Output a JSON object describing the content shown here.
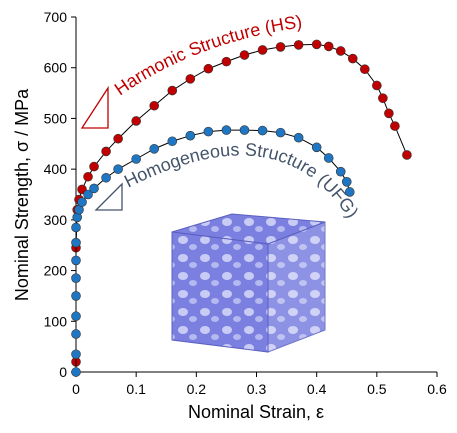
{
  "chart_data": {
    "type": "scatter",
    "xlabel": "Nominal Strain, ε",
    "ylabel": "Nominal Strength, σ / MPa",
    "xlim": [
      0,
      0.6
    ],
    "xticks": [
      0,
      0.1,
      0.2,
      0.3,
      0.4,
      0.5,
      0.6
    ],
    "ylim": [
      0,
      700
    ],
    "yticks": [
      0,
      100,
      200,
      300,
      400,
      500,
      600,
      700
    ],
    "grid": false,
    "series": [
      {
        "name": "Harmonic Structure (HS)",
        "color": "#c00000",
        "label_color": "#c00000",
        "x": [
          0,
          0,
          0.002,
          0.005,
          0.01,
          0.02,
          0.03,
          0.05,
          0.07,
          0.1,
          0.13,
          0.16,
          0.19,
          0.22,
          0.25,
          0.28,
          0.31,
          0.34,
          0.37,
          0.4,
          0.42,
          0.44,
          0.46,
          0.48,
          0.5,
          0.51,
          0.52,
          0.53,
          0.55
        ],
        "values": [
          20,
          245,
          320,
          340,
          360,
          385,
          405,
          435,
          460,
          495,
          525,
          555,
          578,
          598,
          612,
          625,
          635,
          641,
          645,
          646,
          642,
          633,
          618,
          597,
          565,
          540,
          510,
          485,
          428
        ]
      },
      {
        "name": "Homogeneous Structure (UFG)",
        "color": "#1f77c4",
        "label_color": "#44546a",
        "x": [
          0,
          0,
          0,
          0,
          0,
          0,
          0,
          0,
          0,
          0.002,
          0.005,
          0.01,
          0.02,
          0.03,
          0.05,
          0.07,
          0.1,
          0.13,
          0.16,
          0.19,
          0.22,
          0.25,
          0.28,
          0.31,
          0.34,
          0.37,
          0.4,
          0.42,
          0.44,
          0.45,
          0.455
        ],
        "values": [
          0,
          35,
          75,
          110,
          150,
          185,
          220,
          255,
          285,
          305,
          320,
          335,
          350,
          362,
          383,
          400,
          420,
          440,
          455,
          466,
          474,
          477,
          477,
          476,
          472,
          462,
          443,
          422,
          395,
          375,
          355
        ]
      }
    ]
  }
}
